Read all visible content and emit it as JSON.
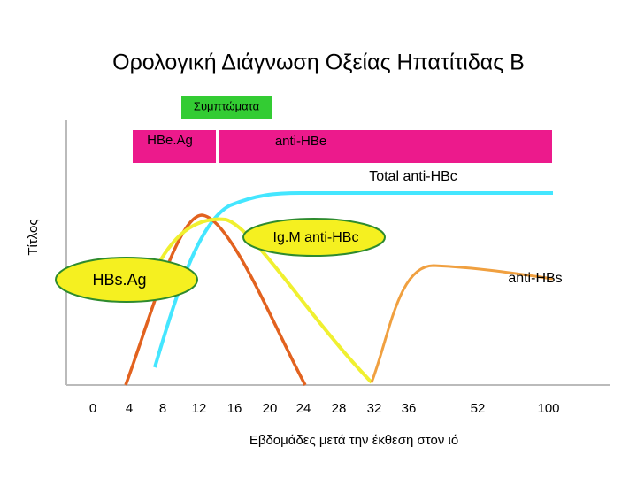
{
  "title": "Ορολογική Διάγνωση Οξείας Ηπατίτιδας Β",
  "symptoms_label": "Συμπτώματα",
  "bars": {
    "hbeag": "HBe.Ag",
    "anti_hbe": "anti-HBe"
  },
  "curves": {
    "total_anti_hbc": "Total anti-HBc",
    "igm_anti_hbc": "Ig.M anti-HBc",
    "hbsag": "HBs.Ag",
    "anti_hbs": "anti-HBs"
  },
  "y_axis_label": "Τίτλος",
  "x_axis": {
    "label": "Εβδομάδες μετά την έκθεση στον ιό",
    "ticks": [
      "0",
      "4",
      "8",
      "12",
      "16",
      "20",
      "24",
      "28",
      "32",
      "36",
      "52",
      "100"
    ]
  }
}
